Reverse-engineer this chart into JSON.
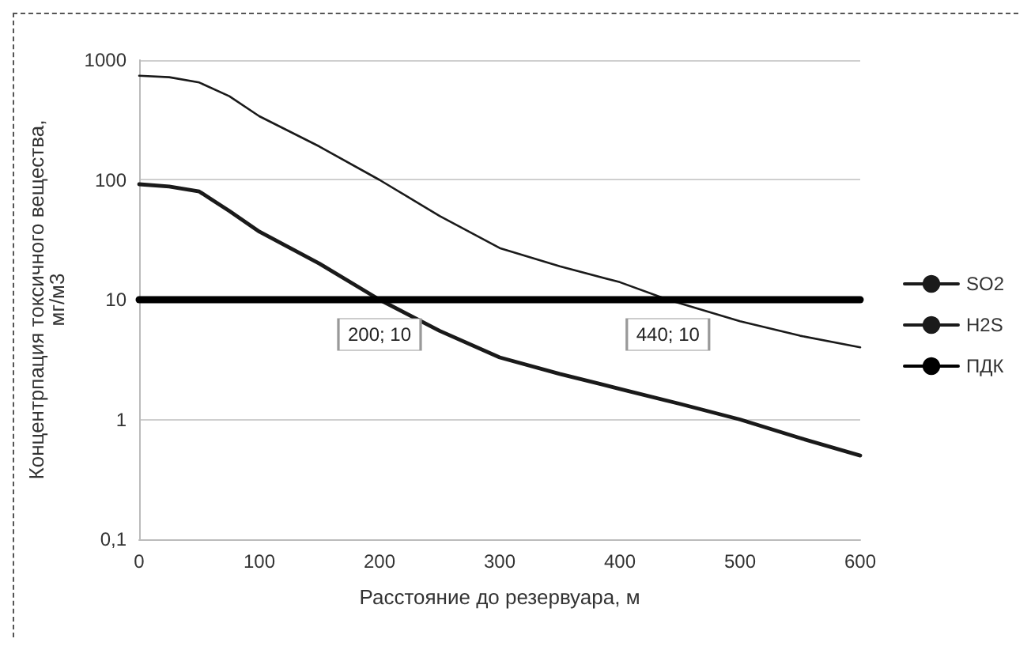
{
  "chart_data": {
    "type": "line",
    "xlabel": "Расстояние до резервуара, м",
    "ylabel": "Концентрпация токсичного вещества,\nмг/м3",
    "log": "y",
    "grid": "y",
    "legend": "right",
    "marker": "none",
    "line_style": "solid",
    "xlim": [
      0,
      600
    ],
    "xticks": [
      0,
      100,
      200,
      300,
      400,
      500,
      600
    ],
    "ylim": [
      0.1,
      1000
    ],
    "yticks": [
      {
        "value": 0.1,
        "label": "0,1"
      },
      1,
      10,
      100,
      1000
    ],
    "series": [
      {
        "name": "SO2",
        "color": "#1a1a1a",
        "x": [
          0,
          25,
          50,
          75,
          100,
          150,
          200,
          250,
          300,
          350,
          400,
          440,
          500,
          550,
          600
        ],
        "values": [
          740,
          720,
          650,
          500,
          340,
          190,
          100,
          50,
          27,
          19,
          14,
          10,
          6.6,
          5,
          4
        ]
      },
      {
        "name": "H2S",
        "color": "#1a1a1a",
        "x": [
          0,
          25,
          50,
          75,
          100,
          150,
          200,
          250,
          300,
          350,
          400,
          450,
          500,
          550,
          600
        ],
        "values": [
          92,
          88,
          80,
          55,
          37,
          20,
          10,
          5.5,
          3.3,
          2.4,
          1.8,
          1.35,
          1,
          0.7,
          0.5
        ]
      },
      {
        "name": "ПДК",
        "color": "#000000",
        "x": [
          0,
          600
        ],
        "values": [
          10,
          10
        ]
      }
    ],
    "annotations": [
      {
        "text": "200; 10",
        "x": 200,
        "y": 10
      },
      {
        "text": "440; 10",
        "x": 440,
        "y": 10
      }
    ]
  }
}
